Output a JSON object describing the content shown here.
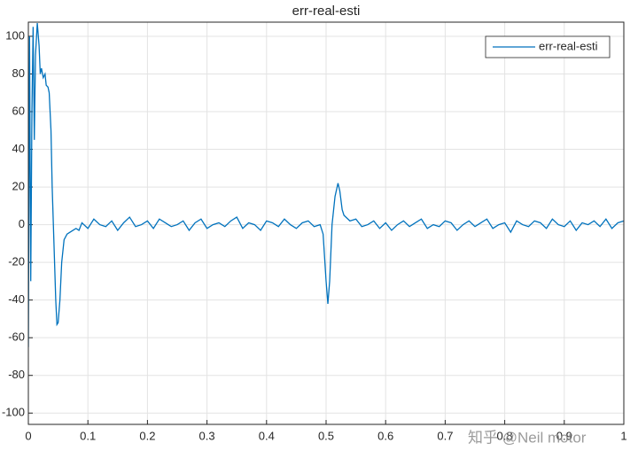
{
  "chart_data": {
    "type": "line",
    "title": "err-real-esti",
    "x": [
      0,
      0.002,
      0.004,
      0.006,
      0.008,
      0.01,
      0.012,
      0.015,
      0.018,
      0.02,
      0.022,
      0.025,
      0.028,
      0.03,
      0.033,
      0.035,
      0.038,
      0.04,
      0.043,
      0.046,
      0.048,
      0.05,
      0.053,
      0.056,
      0.06,
      0.065,
      0.07,
      0.075,
      0.08,
      0.085,
      0.09,
      0.1,
      0.11,
      0.12,
      0.13,
      0.14,
      0.15,
      0.16,
      0.17,
      0.18,
      0.19,
      0.2,
      0.21,
      0.22,
      0.23,
      0.24,
      0.25,
      0.26,
      0.27,
      0.28,
      0.29,
      0.3,
      0.31,
      0.32,
      0.33,
      0.34,
      0.35,
      0.36,
      0.37,
      0.38,
      0.39,
      0.4,
      0.41,
      0.42,
      0.43,
      0.44,
      0.45,
      0.46,
      0.47,
      0.48,
      0.49,
      0.495,
      0.5,
      0.503,
      0.506,
      0.51,
      0.515,
      0.52,
      0.523,
      0.527,
      0.53,
      0.54,
      0.55,
      0.56,
      0.57,
      0.58,
      0.59,
      0.6,
      0.61,
      0.62,
      0.63,
      0.64,
      0.65,
      0.66,
      0.67,
      0.68,
      0.69,
      0.7,
      0.71,
      0.72,
      0.73,
      0.74,
      0.75,
      0.76,
      0.77,
      0.78,
      0.79,
      0.8,
      0.81,
      0.82,
      0.83,
      0.84,
      0.85,
      0.86,
      0.87,
      0.88,
      0.89,
      0.9,
      0.91,
      0.92,
      0.93,
      0.94,
      0.95,
      0.96,
      0.97,
      0.98,
      0.99,
      1
    ],
    "series": [
      {
        "name": "err-real-esti",
        "color": "#0072bd",
        "values": [
          -65,
          100,
          -30,
          60,
          105,
          45,
          90,
          107,
          95,
          80,
          83,
          78,
          80,
          74,
          73,
          70,
          50,
          20,
          -10,
          -40,
          -53,
          -52,
          -40,
          -20,
          -8,
          -5,
          -4,
          -3,
          -2,
          -3,
          1,
          -2,
          3,
          0,
          -1,
          2,
          -3,
          1,
          4,
          -1,
          0,
          2,
          -2,
          3,
          1,
          -1,
          0,
          2,
          -3,
          1,
          3,
          -2,
          0,
          1,
          -1,
          2,
          4,
          -2,
          1,
          0,
          -3,
          2,
          1,
          -1,
          3,
          0,
          -2,
          1,
          2,
          -1,
          0,
          -5,
          -30,
          -42,
          -30,
          0,
          15,
          22,
          18,
          8,
          5,
          2,
          3,
          -1,
          0,
          2,
          -2,
          1,
          -3,
          0,
          2,
          -1,
          1,
          3,
          -2,
          0,
          -1,
          2,
          1,
          -3,
          0,
          2,
          -1,
          1,
          3,
          -2,
          0,
          1,
          -4,
          2,
          0,
          -1,
          2,
          1,
          -2,
          3,
          0,
          -1,
          2,
          -3,
          1,
          0,
          2,
          -1,
          3,
          -2,
          1,
          2
        ]
      }
    ],
    "xlim": [
      0,
      1
    ],
    "xticks": [
      0,
      0.1,
      0.2,
      0.3,
      0.4,
      0.5,
      0.6,
      0.7,
      0.8,
      0.9,
      1
    ],
    "ylim": [
      -106,
      107.5
    ],
    "yticks": [
      -100,
      -80,
      -60,
      -40,
      -20,
      0,
      20,
      40,
      60,
      80,
      100
    ],
    "grid": true,
    "legend": "top-right",
    "watermark": "知乎 @Neil motor"
  }
}
